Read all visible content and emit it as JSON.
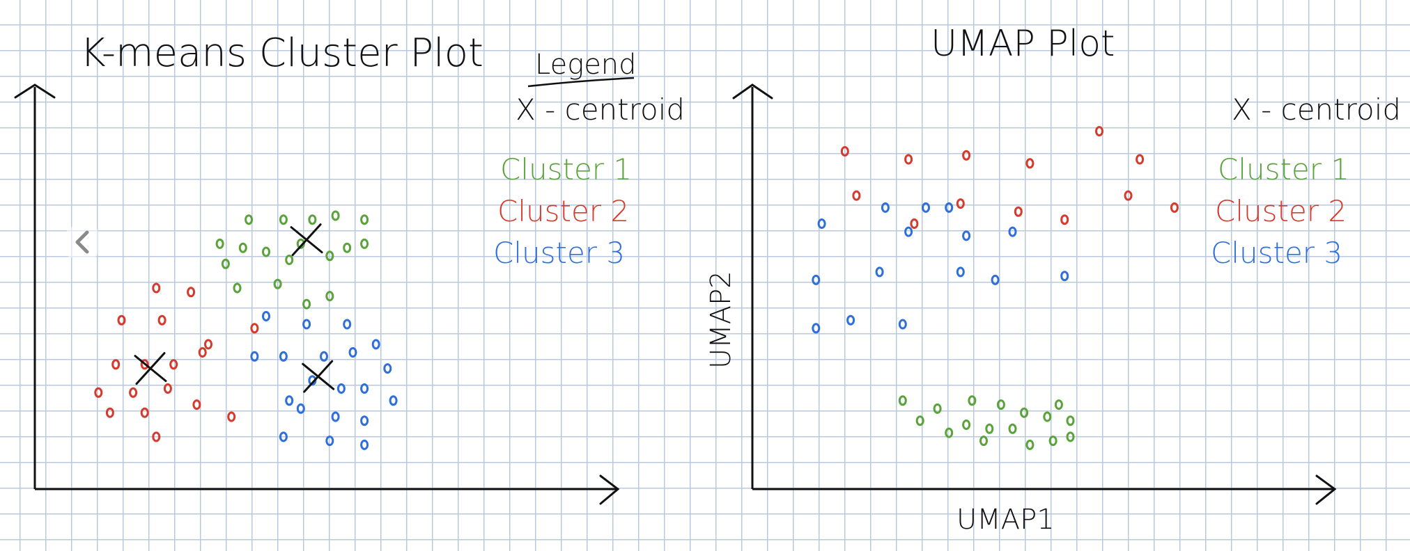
{
  "legend": {
    "heading": "Legend",
    "centroid_label": "X - centroid",
    "cluster1": "Cluster 1",
    "cluster2": "Cluster 2",
    "cluster3": "Cluster 3"
  },
  "colors": {
    "cluster1": "#5aa33a",
    "cluster2": "#d63a2c",
    "cluster3": "#2f6fdc",
    "ink": "#111111"
  },
  "icons": {
    "nav": "chevron-left-icon"
  },
  "chart_data": [
    {
      "type": "scatter",
      "title": "K-means Cluster Plot",
      "xlabel": "",
      "ylabel": "",
      "xlim": [
        0,
        100
      ],
      "ylim": [
        0,
        100
      ],
      "grid": true,
      "legend_position": "top-right",
      "series": [
        {
          "name": "Cluster 1",
          "color": "#5aa33a",
          "points": [
            [
              37,
              67
            ],
            [
              43,
              67
            ],
            [
              48,
              67
            ],
            [
              52,
              68
            ],
            [
              57,
              67
            ],
            [
              32,
              61
            ],
            [
              36,
              60
            ],
            [
              40,
              59
            ],
            [
              46,
              61
            ],
            [
              51,
              58
            ],
            [
              54,
              60
            ],
            [
              57,
              61
            ],
            [
              35,
              50
            ],
            [
              42,
              51
            ],
            [
              47,
              46
            ],
            [
              51,
              48
            ],
            [
              33,
              56
            ],
            [
              44,
              57
            ]
          ]
        },
        {
          "name": "Cluster 2",
          "color": "#d63a2c",
          "points": [
            [
              21,
              50
            ],
            [
              27,
              49
            ],
            [
              15,
              42
            ],
            [
              22,
              42
            ],
            [
              30,
              36
            ],
            [
              38,
              40
            ],
            [
              14,
              31
            ],
            [
              19,
              31
            ],
            [
              24,
              31
            ],
            [
              11,
              24
            ],
            [
              17,
              24
            ],
            [
              23,
              25
            ],
            [
              13,
              19
            ],
            [
              19,
              19
            ],
            [
              28,
              21
            ],
            [
              34,
              18
            ],
            [
              21,
              13
            ],
            [
              29,
              34
            ]
          ]
        },
        {
          "name": "Cluster 3",
          "color": "#2f6fdc",
          "points": [
            [
              40,
              43
            ],
            [
              47,
              41
            ],
            [
              54,
              41
            ],
            [
              38,
              33
            ],
            [
              43,
              33
            ],
            [
              50,
              33
            ],
            [
              55,
              34
            ],
            [
              59,
              36
            ],
            [
              48,
              27
            ],
            [
              53,
              25
            ],
            [
              57,
              25
            ],
            [
              61,
              30
            ],
            [
              46,
              20
            ],
            [
              52,
              18
            ],
            [
              57,
              17
            ],
            [
              62,
              22
            ],
            [
              43,
              13
            ],
            [
              51,
              12
            ],
            [
              57,
              11
            ],
            [
              44,
              22
            ]
          ]
        }
      ],
      "centroids": [
        [
          47,
          62
        ],
        [
          20,
          30
        ],
        [
          49,
          28
        ]
      ]
    },
    {
      "type": "scatter",
      "title": "UMAP Plot",
      "xlabel": "UMAP1",
      "ylabel": "UMAP2",
      "xlim": [
        0,
        100
      ],
      "ylim": [
        0,
        100
      ],
      "grid": true,
      "legend_position": "top-right",
      "series": [
        {
          "name": "Cluster 1",
          "color": "#5aa33a",
          "points": [
            [
              26,
              22
            ],
            [
              32,
              20
            ],
            [
              38,
              22
            ],
            [
              43,
              21
            ],
            [
              47,
              19
            ],
            [
              53,
              21
            ],
            [
              55,
              17
            ],
            [
              51,
              18
            ],
            [
              29,
              17
            ],
            [
              37,
              16
            ],
            [
              41,
              15
            ],
            [
              45,
              15
            ],
            [
              34,
              14
            ],
            [
              40,
              12
            ],
            [
              48,
              11
            ],
            [
              52,
              12
            ],
            [
              55,
              13
            ]
          ]
        },
        {
          "name": "Cluster 2",
          "color": "#d63a2c",
          "points": [
            [
              16,
              84
            ],
            [
              27,
              82
            ],
            [
              37,
              83
            ],
            [
              48,
              81
            ],
            [
              60,
              89
            ],
            [
              67,
              82
            ],
            [
              65,
              73
            ],
            [
              73,
              70
            ],
            [
              18,
              73
            ],
            [
              28,
              66
            ],
            [
              36,
              71
            ],
            [
              46,
              69
            ],
            [
              54,
              67
            ]
          ]
        },
        {
          "name": "Cluster 3",
          "color": "#2f6fdc",
          "points": [
            [
              23,
              70
            ],
            [
              30,
              70
            ],
            [
              34,
              70
            ],
            [
              12,
              66
            ],
            [
              27,
              64
            ],
            [
              37,
              63
            ],
            [
              45,
              64
            ],
            [
              11,
              52
            ],
            [
              22,
              54
            ],
            [
              36,
              54
            ],
            [
              42,
              52
            ],
            [
              54,
              53
            ],
            [
              11,
              40
            ],
            [
              17,
              42
            ],
            [
              26,
              41
            ]
          ]
        }
      ],
      "centroids": []
    }
  ]
}
